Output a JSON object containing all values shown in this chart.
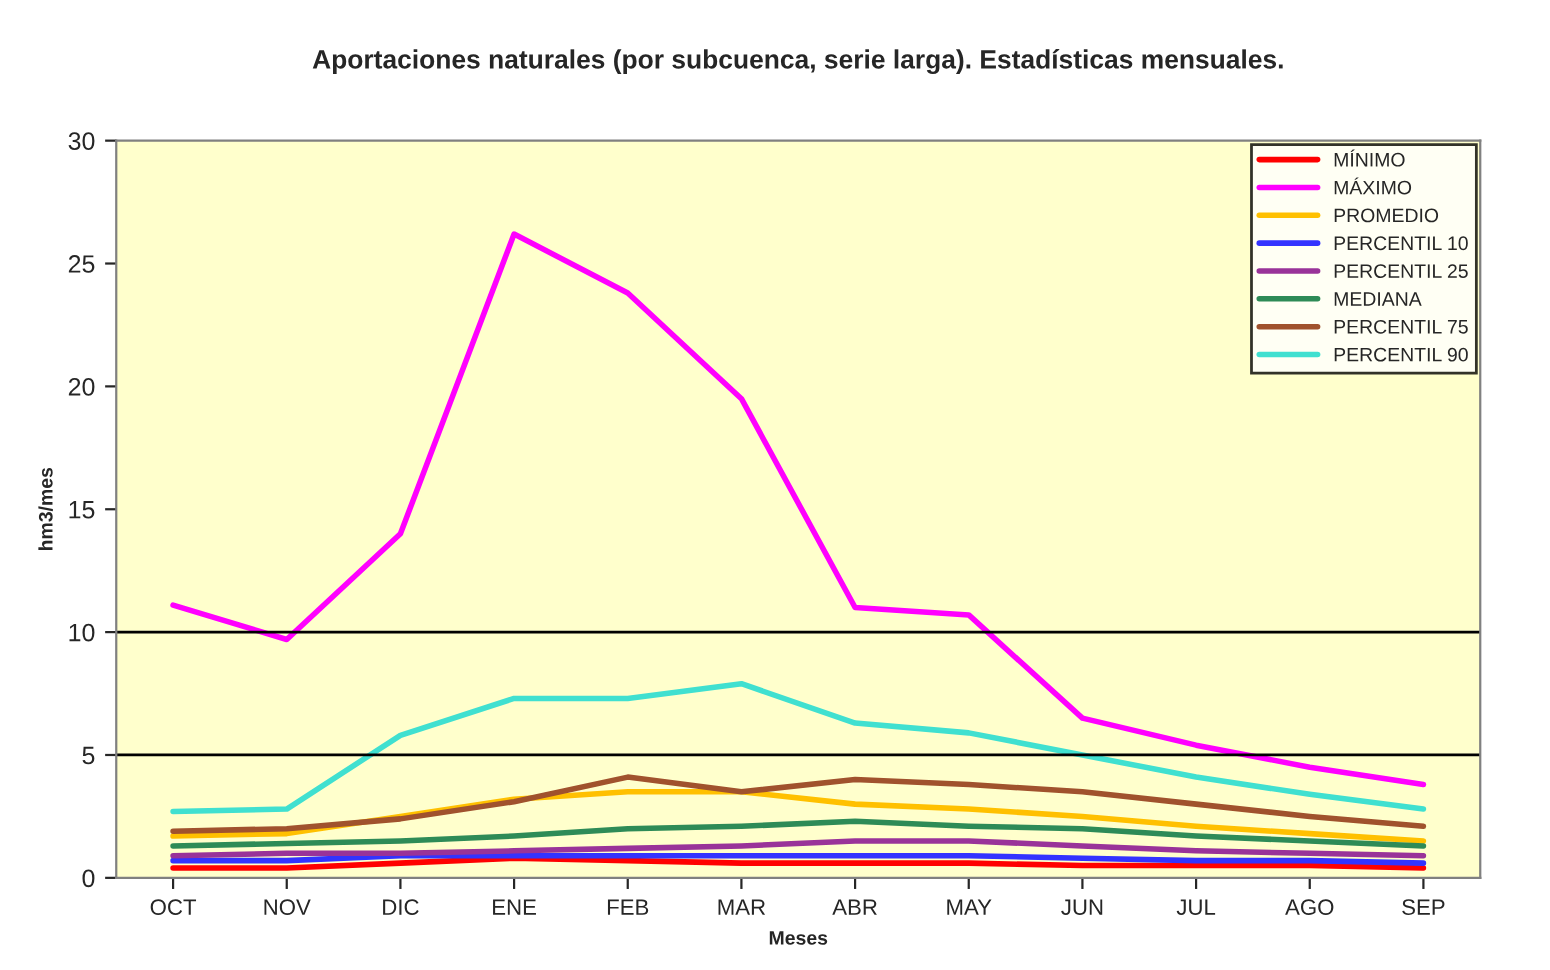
{
  "chart_data": {
    "type": "line",
    "title": "Aportaciones naturales (por subcuenca, serie larga). Estadísticas mensuales.",
    "xlabel": "Meses",
    "ylabel": "hm3/mes",
    "categories": [
      "OCT",
      "NOV",
      "DIC",
      "ENE",
      "FEB",
      "MAR",
      "ABR",
      "MAY",
      "JUN",
      "JUL",
      "AGO",
      "SEP"
    ],
    "ylim": [
      0,
      30
    ],
    "yticks": [
      0,
      5,
      10,
      15,
      20,
      25,
      30
    ],
    "grid": false,
    "legend": "top right",
    "marker": "none",
    "line_style": "solid",
    "ref_lines": [
      {
        "axis": "y",
        "value": 5,
        "color": "#000000"
      },
      {
        "axis": "y",
        "value": 10,
        "color": "#000000"
      }
    ],
    "series": [
      {
        "name": "MÍNIMO",
        "color": "#ff0000",
        "values": [
          0.4,
          0.4,
          0.6,
          0.8,
          0.7,
          0.6,
          0.6,
          0.6,
          0.5,
          0.5,
          0.5,
          0.4
        ]
      },
      {
        "name": "MÁXIMO",
        "color": "#ff00ff",
        "values": [
          11.1,
          9.7,
          14,
          26.2,
          23.8,
          19.5,
          11,
          10.7,
          6.5,
          5.4,
          4.5,
          3.8
        ]
      },
      {
        "name": "PROMEDIO",
        "color": "#ffc000",
        "values": [
          1.7,
          1.8,
          2.5,
          3.2,
          3.5,
          3.5,
          3.0,
          2.8,
          2.5,
          2.1,
          1.8,
          1.5
        ]
      },
      {
        "name": "PERCENTIL 10",
        "color": "#3333ff",
        "values": [
          0.7,
          0.7,
          0.9,
          0.9,
          0.9,
          0.9,
          0.9,
          0.9,
          0.8,
          0.7,
          0.7,
          0.6
        ]
      },
      {
        "name": "PERCENTIL 25",
        "color": "#993399",
        "values": [
          0.9,
          1.0,
          1.0,
          1.1,
          1.2,
          1.3,
          1.5,
          1.5,
          1.3,
          1.1,
          1.0,
          0.9
        ]
      },
      {
        "name": "MEDIANA",
        "color": "#2e8b57",
        "values": [
          1.3,
          1.4,
          1.5,
          1.7,
          2.0,
          2.1,
          2.3,
          2.1,
          2.0,
          1.7,
          1.5,
          1.3
        ]
      },
      {
        "name": "PERCENTIL 75",
        "color": "#a0522d",
        "values": [
          1.9,
          2.0,
          2.4,
          3.1,
          4.1,
          3.5,
          4.0,
          3.8,
          3.5,
          3.0,
          2.5,
          2.1
        ]
      },
      {
        "name": "PERCENTIL 90",
        "color": "#40e0d0",
        "values": [
          2.7,
          2.8,
          5.8,
          7.3,
          7.3,
          7.9,
          6.3,
          5.9,
          5.0,
          4.1,
          3.4,
          2.8
        ]
      }
    ]
  }
}
